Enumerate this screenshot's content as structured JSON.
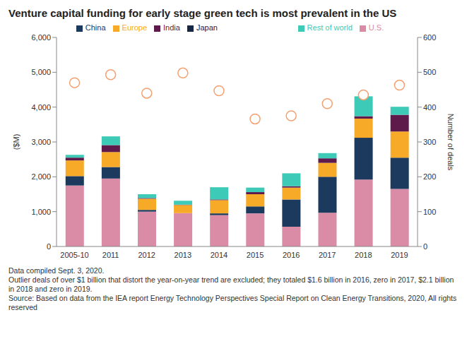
{
  "chart_data": {
    "type": "bar",
    "stacked": true,
    "title": "Venture capital funding for early stage green tech is most prevalent in the US",
    "y_label": "($M)",
    "y2_label": "Number of deals",
    "categories": [
      "2005-10",
      "2011",
      "2012",
      "2013",
      "2014",
      "2015",
      "2016",
      "2017",
      "2018",
      "2019"
    ],
    "series": [
      {
        "name": "U.S.",
        "color": "#da8ba6",
        "values": [
          1750,
          1950,
          1000,
          960,
          900,
          950,
          570,
          970,
          1920,
          1650
        ]
      },
      {
        "name": "China",
        "color": "#1c3a5e",
        "values": [
          270,
          330,
          50,
          0,
          50,
          200,
          780,
          1030,
          1200,
          900
        ]
      },
      {
        "name": "Europe",
        "color": "#f7a928",
        "values": [
          450,
          430,
          320,
          230,
          380,
          350,
          340,
          400,
          550,
          750
        ]
      },
      {
        "name": "India",
        "color": "#5e1a4a",
        "values": [
          80,
          200,
          20,
          10,
          20,
          60,
          40,
          130,
          70,
          480
        ]
      },
      {
        "name": "Rest of world",
        "color": "#3dcab6",
        "values": [
          80,
          250,
          110,
          110,
          350,
          130,
          370,
          150,
          570,
          230
        ]
      },
      {
        "name": "Japan",
        "color": "#162744",
        "values": [
          0,
          0,
          0,
          0,
          0,
          0,
          0,
          0,
          0,
          0
        ]
      },
      {
        "name": "Number of deals",
        "type": "scatter",
        "axis": "y2",
        "color": "#f4a172",
        "marker": "circle",
        "values": [
          470,
          493,
          440,
          498,
          447,
          366,
          375,
          410,
          435,
          463
        ]
      }
    ],
    "ylim": [
      0,
      6000
    ],
    "yticks": [
      0,
      {
        "value": 1000,
        "label": "1,000"
      },
      {
        "value": 2000,
        "label": "2,000"
      },
      {
        "value": 3000,
        "label": "3,000"
      },
      {
        "value": 4000,
        "label": "4,000"
      },
      {
        "value": 5000,
        "label": "5,000"
      },
      {
        "value": 6000,
        "label": "6,000"
      }
    ],
    "y2lim": [
      0,
      600
    ],
    "y2ticks": [
      0,
      100,
      200,
      300,
      400,
      500,
      600
    ],
    "grid": false,
    "legend": "top",
    "annotations": [
      "Data compiled Sept. 3, 2020.",
      "Outlier deals of over $1 billion that distort the year-on-year trend are excluded; they totaled $1.6 billion in 2016, zero in 2017, $2.1 billion in 2018 and zero in 2019.",
      "Source: Based on data from the IEA report Energy Technology Perspectives Special Report on Clean Energy Transitions, 2020, All rights reserved"
    ]
  }
}
